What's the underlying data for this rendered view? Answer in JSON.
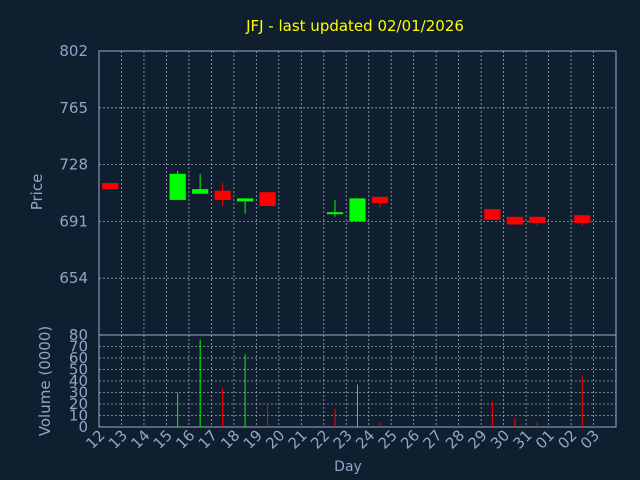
{
  "colors": {
    "background": "#0f1f30",
    "frame": "#9aaecb",
    "grid": "#c6d0dc",
    "title": "#ffff00",
    "axis_text": "#8fa6c4",
    "up": "#00ff00",
    "down": "#ff0000"
  },
  "chart_data": [
    {
      "type": "candlestick",
      "title": "JFJ - last updated 02/01/2026",
      "ylabel": "Price",
      "ylim": [
        617,
        802
      ],
      "yticks": [
        654,
        691,
        728,
        765,
        802
      ],
      "grid": true,
      "candles": [
        {
          "day": "12",
          "open": 716,
          "close": 712,
          "high": 716,
          "low": 712
        },
        {
          "day": "15",
          "open": 705,
          "close": 722,
          "high": 724,
          "low": 705
        },
        {
          "day": "16",
          "open": 709,
          "close": 712,
          "high": 722,
          "low": 709
        },
        {
          "day": "17",
          "open": 711,
          "close": 705,
          "high": 716,
          "low": 701
        },
        {
          "day": "18",
          "open": 704,
          "close": 706,
          "high": 706,
          "low": 696
        },
        {
          "day": "19",
          "open": 710,
          "close": 701,
          "high": 710,
          "low": 701
        },
        {
          "day": "22",
          "open": 697,
          "close": 697,
          "high": 705,
          "low": 694
        },
        {
          "day": "23",
          "open": 691,
          "close": 706,
          "high": 706,
          "low": 691
        },
        {
          "day": "24",
          "open": 707,
          "close": 703,
          "high": 707,
          "low": 700
        },
        {
          "day": "29",
          "open": 699,
          "close": 692,
          "high": 699,
          "low": 692
        },
        {
          "day": "30",
          "open": 694,
          "close": 689,
          "high": 694,
          "low": 689
        },
        {
          "day": "31",
          "open": 694,
          "close": 690,
          "high": 694,
          "low": 688
        },
        {
          "day": "02",
          "open": 695,
          "close": 690,
          "high": 695,
          "low": 688
        }
      ]
    },
    {
      "type": "bar",
      "ylabel": "Volume (0000)",
      "xlabel": "Day",
      "ylim": [
        0,
        80
      ],
      "yticks": [
        0,
        10,
        20,
        30,
        40,
        50,
        60,
        70,
        80
      ],
      "categories": [
        "12",
        "13",
        "14",
        "15",
        "16",
        "17",
        "18",
        "19",
        "20",
        "21",
        "22",
        "23",
        "24",
        "25",
        "26",
        "27",
        "28",
        "29",
        "30",
        "31",
        "01",
        "02",
        "03"
      ],
      "values": [
        0,
        0,
        0,
        30,
        76,
        34,
        63,
        20,
        0,
        0,
        16,
        37,
        4,
        0,
        0,
        0,
        0,
        22,
        8,
        4,
        0,
        45,
        0
      ],
      "directions": [
        "down",
        "none",
        "none",
        "up",
        "up",
        "down",
        "up",
        "down",
        "none",
        "none",
        "down",
        "up",
        "down",
        "none",
        "none",
        "none",
        "none",
        "down",
        "down",
        "down",
        "none",
        "down",
        "none"
      ]
    }
  ]
}
